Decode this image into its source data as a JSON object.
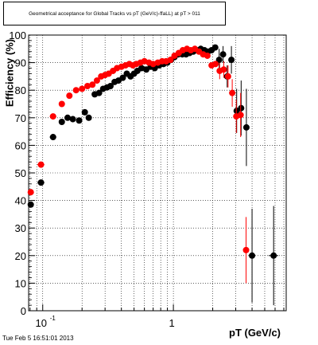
{
  "title": "Geometrical acceptance for Global Tracks vs pT (GeV/c)-ffaLL) at pT > 011",
  "xlabel": "pT (GeV/c)",
  "ylabel": "Efficiency (%)",
  "footer": "Tue Feb  5 16:51:01 2013",
  "colors": {
    "series_black": "#000000",
    "series_red": "#ff0000",
    "grid": "#000000"
  },
  "chart_data": {
    "type": "scatter",
    "xscale": "log",
    "xlim": [
      0.078,
      7.3
    ],
    "ylim": [
      0,
      100
    ],
    "grid": true,
    "x_ticklabels": [
      {
        "value": 0.1,
        "base": "10",
        "exp": "-1"
      },
      {
        "value": 1,
        "base": "1",
        "exp": ""
      }
    ],
    "y_ticks": [
      0,
      10,
      20,
      30,
      40,
      50,
      60,
      70,
      80,
      90,
      100
    ],
    "series": [
      {
        "color": "#000000",
        "points": [
          [
            0.081,
            38.5,
            0.003,
            0
          ],
          [
            0.097,
            46.5,
            0.006,
            0
          ],
          [
            0.12,
            63,
            0.007,
            0
          ],
          [
            0.14,
            68.5,
            0.006,
            0
          ],
          [
            0.155,
            70,
            0,
            0
          ],
          [
            0.17,
            69.5,
            0,
            0
          ],
          [
            0.19,
            69,
            0,
            0
          ],
          [
            0.21,
            72,
            0,
            0
          ],
          [
            0.225,
            70,
            0,
            0
          ],
          [
            0.25,
            78.5,
            0,
            0
          ],
          [
            0.27,
            79,
            0,
            0
          ],
          [
            0.29,
            80.5,
            0,
            0
          ],
          [
            0.31,
            81,
            0,
            0
          ],
          [
            0.33,
            81.5,
            0,
            0
          ],
          [
            0.355,
            83,
            0,
            0
          ],
          [
            0.38,
            83.5,
            0,
            0
          ],
          [
            0.41,
            84.5,
            0,
            0
          ],
          [
            0.44,
            86,
            0,
            0
          ],
          [
            0.47,
            85,
            0,
            0
          ],
          [
            0.5,
            86,
            0,
            0
          ],
          [
            0.53,
            87,
            0,
            0
          ],
          [
            0.57,
            88,
            0,
            0
          ],
          [
            0.62,
            87.5,
            0,
            0
          ],
          [
            0.67,
            88.5,
            0,
            0
          ],
          [
            0.72,
            88,
            0,
            0
          ],
          [
            0.78,
            89,
            0,
            0
          ],
          [
            0.84,
            89.5,
            0,
            0
          ],
          [
            0.9,
            90,
            0,
            0
          ],
          [
            0.96,
            91,
            0,
            0
          ],
          [
            1.02,
            92,
            0,
            0
          ],
          [
            1.09,
            93,
            0,
            0
          ],
          [
            1.17,
            93,
            0,
            0
          ],
          [
            1.25,
            93,
            0,
            0
          ],
          [
            1.33,
            93.5,
            0,
            0
          ],
          [
            1.42,
            94,
            0,
            0
          ],
          [
            1.52,
            94.5,
            0,
            0
          ],
          [
            1.62,
            95,
            0,
            0
          ],
          [
            1.73,
            94.5,
            0,
            0
          ],
          [
            1.84,
            94,
            0,
            0
          ],
          [
            1.96,
            94.5,
            0,
            0
          ],
          [
            2.09,
            95.5,
            0,
            0
          ],
          [
            2.24,
            91,
            0,
            4
          ],
          [
            2.4,
            93,
            0,
            3
          ],
          [
            2.58,
            85,
            0,
            4
          ],
          [
            2.78,
            91,
            0,
            5
          ],
          [
            3.05,
            72.5,
            0,
            8
          ],
          [
            3.3,
            73.5,
            0,
            10
          ],
          [
            3.62,
            66.5,
            0,
            14
          ],
          [
            4.0,
            20,
            0,
            17
          ],
          [
            5.85,
            20,
            0.5,
            18
          ]
        ]
      },
      {
        "color": "#ff0000",
        "points": [
          [
            0.081,
            43,
            0.003,
            0
          ],
          [
            0.097,
            53,
            0.006,
            0
          ],
          [
            0.12,
            70.5,
            0.007,
            0
          ],
          [
            0.14,
            75,
            0.006,
            0
          ],
          [
            0.16,
            78,
            0,
            0
          ],
          [
            0.18,
            80,
            0,
            0
          ],
          [
            0.2,
            80.5,
            0,
            0
          ],
          [
            0.22,
            81.5,
            0,
            0
          ],
          [
            0.24,
            82,
            0,
            0
          ],
          [
            0.26,
            83.5,
            0,
            0
          ],
          [
            0.28,
            85,
            0,
            0
          ],
          [
            0.3,
            85.5,
            0,
            0
          ],
          [
            0.32,
            86,
            0,
            0
          ],
          [
            0.345,
            87,
            0,
            0
          ],
          [
            0.37,
            88,
            0,
            0
          ],
          [
            0.4,
            88.5,
            0,
            0
          ],
          [
            0.43,
            89,
            0,
            0
          ],
          [
            0.46,
            89.5,
            0,
            0
          ],
          [
            0.49,
            89,
            0,
            0
          ],
          [
            0.52,
            89.5,
            0,
            0
          ],
          [
            0.56,
            90,
            0,
            0
          ],
          [
            0.6,
            90.5,
            0,
            0
          ],
          [
            0.65,
            90,
            0,
            0
          ],
          [
            0.7,
            89.5,
            0,
            0
          ],
          [
            0.76,
            90,
            0,
            0
          ],
          [
            0.82,
            90.5,
            0,
            0
          ],
          [
            0.88,
            90.5,
            0,
            0
          ],
          [
            0.95,
            91,
            0,
            0
          ],
          [
            1.02,
            92.5,
            0,
            0
          ],
          [
            1.1,
            93.5,
            0,
            0
          ],
          [
            1.18,
            94.5,
            0,
            0
          ],
          [
            1.27,
            95,
            0,
            0
          ],
          [
            1.36,
            94.5,
            0,
            0
          ],
          [
            1.46,
            95,
            0,
            0
          ],
          [
            1.57,
            94,
            0,
            0
          ],
          [
            1.69,
            93,
            0,
            0
          ],
          [
            1.82,
            92.5,
            0,
            0
          ],
          [
            1.96,
            89,
            0,
            0
          ],
          [
            2.1,
            89.5,
            0,
            0
          ],
          [
            2.26,
            87,
            0,
            3
          ],
          [
            2.43,
            87.5,
            0,
            3
          ],
          [
            2.62,
            85,
            0,
            4
          ],
          [
            2.82,
            79,
            0,
            5
          ],
          [
            3.03,
            70.5,
            0,
            6
          ],
          [
            3.27,
            71,
            0,
            8
          ],
          [
            3.6,
            22,
            0,
            12
          ]
        ]
      }
    ]
  }
}
